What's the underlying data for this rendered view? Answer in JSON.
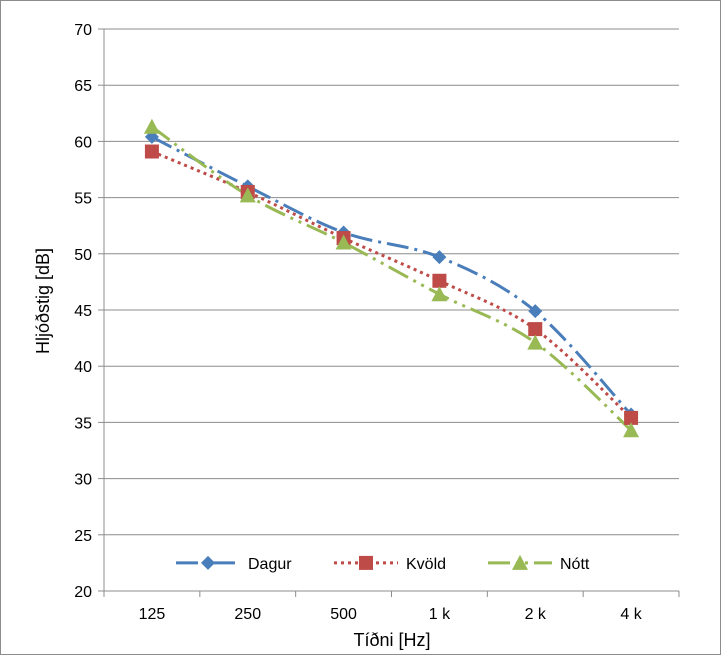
{
  "chart_data": {
    "type": "line",
    "title": "",
    "xlabel": "Tíðni [Hz]",
    "ylabel": "Hljóðstig [dB]",
    "categories": [
      "125",
      "250",
      "500",
      "1 k",
      "2 k",
      "4 k"
    ],
    "ylim": [
      20,
      70
    ],
    "ytick_step": 5,
    "grid": "horizontal",
    "legend_position": "bottom-inside",
    "series": [
      {
        "name": "Dagur",
        "color": "#4a7ebb",
        "marker": "diamond",
        "line_style": "long-dash-dot",
        "values": [
          60.4,
          56.0,
          51.9,
          49.7,
          44.9,
          35.7
        ]
      },
      {
        "name": "Kvöld",
        "color": "#be4b48",
        "marker": "square",
        "line_style": "dotted",
        "values": [
          59.1,
          55.5,
          51.4,
          47.6,
          43.3,
          35.4
        ]
      },
      {
        "name": "Nótt",
        "color": "#98b954",
        "marker": "triangle",
        "line_style": "long-dash-dot-dot",
        "values": [
          61.3,
          55.2,
          51.0,
          46.4,
          42.1,
          34.3
        ]
      }
    ]
  }
}
